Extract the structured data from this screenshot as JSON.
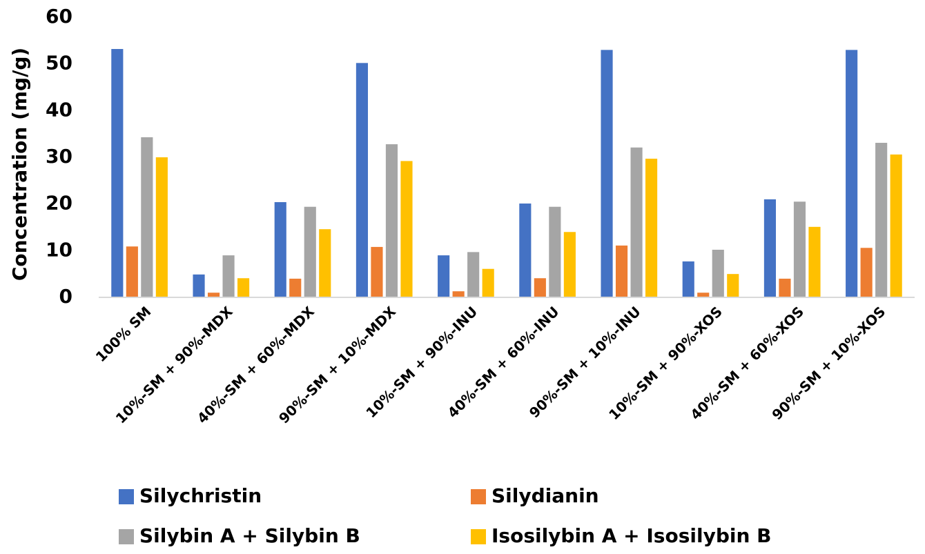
{
  "chart_data": {
    "type": "bar",
    "y_label": "Concentration (mg/g)",
    "categories": [
      "100% SM",
      "10%-SM + 90%-MDX",
      "40%-SM + 60%-MDX",
      "90%-SM + 10%-MDX",
      "10%-SM + 90%-INU",
      "40%-SM + 60%-INU",
      "90%-SM + 10%-INU",
      "10%-SM + 90%-XOS",
      "40%-SM + 60%-XOS",
      "90%-SM + 10%-XOS"
    ],
    "series": [
      {
        "name": "Silychristin",
        "color": "#4472c4",
        "values": [
          53.2,
          4.9,
          20.4,
          50.2,
          9.0,
          20.1,
          53.0,
          7.7,
          21.0,
          53.0
        ]
      },
      {
        "name": "Silydianin",
        "color": "#ed7d31",
        "values": [
          10.9,
          1.0,
          4.0,
          10.8,
          1.3,
          4.1,
          11.1,
          1.0,
          4.0,
          10.6
        ]
      },
      {
        "name": "Silybin A + Silybin B",
        "color": "#a5a5a5",
        "values": [
          34.3,
          9.0,
          19.4,
          32.8,
          9.7,
          19.4,
          32.1,
          10.2,
          20.5,
          33.1
        ]
      },
      {
        "name": "Isosilybin A + Isosilybin B",
        "color": "#ffc000",
        "values": [
          30.0,
          4.1,
          14.6,
          29.2,
          6.1,
          14.0,
          29.7,
          5.0,
          15.1,
          30.6
        ]
      }
    ],
    "ylim": [
      0,
      60
    ],
    "yticks": [
      0,
      10,
      20,
      30,
      40,
      50,
      60
    ],
    "legend": "bottom"
  }
}
